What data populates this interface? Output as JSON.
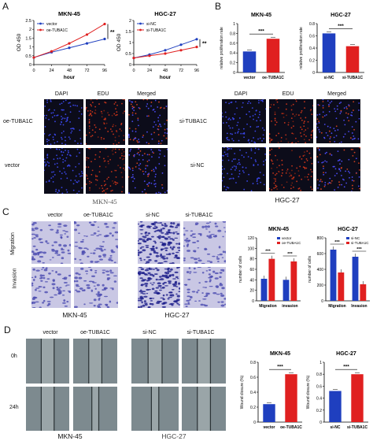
{
  "panels": {
    "A": "A",
    "B": "B",
    "C": "C",
    "D": "D"
  },
  "colors": {
    "blue": "#1f3fbf",
    "red": "#e02020",
    "fluor_bg": "#0c0c1a",
    "transwell_bg": "#c9c7e4",
    "wound_bg": "#7d8a8f"
  },
  "panel_a": {
    "growth_curves": [
      {
        "title": "MKN-45",
        "ylabel": "OD 450",
        "xlabel": "hour",
        "legend": [
          "vector",
          "oe-TUBA1C"
        ],
        "significance": "**"
      },
      {
        "title": "HGC-27",
        "ylabel": "OD 450",
        "xlabel": "hour",
        "legend": [
          "si-NC",
          "si-TUBA1C"
        ],
        "significance": "**"
      }
    ],
    "mkn_edu": {
      "col_headers": [
        "DAPI",
        "EDU",
        "Merged"
      ],
      "row_labels": [
        "oe-TUBA1C",
        "vector"
      ],
      "caption": "MKN-45"
    },
    "hgc_edu": {
      "col_headers": [
        "DAPI",
        "EDU",
        "Merged"
      ],
      "row_labels": [
        "si-TUBA1C",
        "si-NC"
      ],
      "caption": "HGC-27"
    }
  },
  "panel_b": {
    "bars": [
      {
        "title": "MKN-45",
        "ylabel": "relative proliferation rate",
        "categories": [
          "vector",
          "oe-TUBA1C"
        ],
        "significance": "***"
      },
      {
        "title": "HGC-27",
        "ylabel": "relative proliferation rate",
        "categories": [
          "si-NC",
          "si-TUBA1C"
        ],
        "significance": "***"
      }
    ]
  },
  "panel_c": {
    "mkn": {
      "col_headers": [
        "vector",
        "oe-TUBA1C"
      ],
      "row_labels": [
        "Migration",
        "Invasion"
      ],
      "caption": "MKN-45"
    },
    "hgc": {
      "col_headers": [
        "si-NC",
        "si-TUBA1C"
      ],
      "caption": "HGC-27"
    }
  },
  "panel_d": {
    "mkn": {
      "col_headers": [
        "vector",
        "oe-TUBA1C"
      ],
      "row_labels": [
        "0h",
        "24h"
      ],
      "caption": "MKN-45"
    },
    "hgc": {
      "col_headers": [
        "si-NC",
        "si-TUBA1C"
      ],
      "caption": "HGC-27"
    }
  },
  "chart_data": [
    {
      "type": "line",
      "title": "MKN-45",
      "xlabel": "hour",
      "ylabel": "OD 450",
      "x": [
        0,
        24,
        48,
        72,
        96
      ],
      "ylim": [
        0,
        2.5
      ],
      "xticks": [
        0,
        24,
        48,
        72,
        96
      ],
      "yticks": [
        0,
        0.5,
        1.0,
        1.5,
        2.0,
        2.5
      ],
      "series": [
        {
          "name": "vector",
          "color": "#1f3fbf",
          "values": [
            0.4,
            0.7,
            0.95,
            1.2,
            1.45
          ]
        },
        {
          "name": "oe-TUBA1C",
          "color": "#e02020",
          "values": [
            0.4,
            0.75,
            1.2,
            1.7,
            2.3
          ]
        }
      ]
    },
    {
      "type": "line",
      "title": "HGC-27",
      "xlabel": "hour",
      "ylabel": "OD 450",
      "x": [
        0,
        24,
        48,
        72,
        96
      ],
      "ylim": [
        0,
        2.0
      ],
      "xticks": [
        0,
        24,
        48,
        72,
        96
      ],
      "yticks": [
        0,
        0.5,
        1.0,
        1.5,
        2.0
      ],
      "series": [
        {
          "name": "si-NC",
          "color": "#1f3fbf",
          "values": [
            0.3,
            0.45,
            0.65,
            0.9,
            1.15
          ]
        },
        {
          "name": "si-TUBA1C",
          "color": "#e02020",
          "values": [
            0.3,
            0.4,
            0.5,
            0.65,
            0.8
          ]
        }
      ]
    },
    {
      "type": "bar",
      "title": "MKN-45",
      "ylabel": "relative proliferation rate",
      "ylim": [
        0,
        1.0
      ],
      "yticks": [
        0,
        0.2,
        0.4,
        0.6,
        0.8,
        1.0
      ],
      "categories": [
        "vector",
        "oe-TUBA1C"
      ],
      "values": [
        0.43,
        0.69
      ],
      "colors": [
        "#1f3fbf",
        "#e02020"
      ]
    },
    {
      "type": "bar",
      "title": "HGC-27",
      "ylabel": "relative proliferation rate",
      "ylim": [
        0,
        0.8
      ],
      "yticks": [
        0,
        0.2,
        0.4,
        0.6,
        0.8
      ],
      "categories": [
        "si-NC",
        "si-TUBA1C"
      ],
      "values": [
        0.64,
        0.43
      ],
      "colors": [
        "#1f3fbf",
        "#e02020"
      ]
    },
    {
      "type": "bar",
      "title": "MKN-45",
      "ylabel": "number of cells",
      "ylim": [
        0,
        120
      ],
      "yticks": [
        0,
        20,
        40,
        60,
        80,
        100,
        120
      ],
      "categories": [
        "Migration",
        "invasion"
      ],
      "series": [
        {
          "name": "vector",
          "color": "#1f3fbf",
          "values": [
            42,
            40
          ]
        },
        {
          "name": "oe-TUBA1C",
          "color": "#e02020",
          "values": [
            80,
            75
          ]
        }
      ]
    },
    {
      "type": "bar",
      "title": "HGC-27",
      "ylabel": "number of cells",
      "ylim": [
        0,
        800
      ],
      "yticks": [
        0,
        200,
        400,
        600,
        800
      ],
      "categories": [
        "Migration",
        "Invasion"
      ],
      "series": [
        {
          "name": "si-NC",
          "color": "#1f3fbf",
          "values": [
            650,
            560
          ]
        },
        {
          "name": "si-TUBA1C",
          "color": "#e02020",
          "values": [
            360,
            210
          ]
        }
      ]
    },
    {
      "type": "bar",
      "title": "MKN-45",
      "ylabel": "Wound closure (%)",
      "ylim": [
        0,
        0.8
      ],
      "yticks": [
        0,
        0.2,
        0.4,
        0.6,
        0.8
      ],
      "categories": [
        "vector",
        "oe-TUBA1C"
      ],
      "values": [
        0.24,
        0.64
      ],
      "colors": [
        "#1f3fbf",
        "#e02020"
      ]
    },
    {
      "type": "bar",
      "title": "HGC-27",
      "ylabel": "Wound closure (%)",
      "ylim": [
        0,
        1.0
      ],
      "yticks": [
        0,
        0.2,
        0.4,
        0.6,
        0.8,
        1.0
      ],
      "categories": [
        "si-NC",
        "si-TUBA1C"
      ],
      "values": [
        0.52,
        0.8
      ],
      "colors": [
        "#1f3fbf",
        "#e02020"
      ]
    }
  ]
}
